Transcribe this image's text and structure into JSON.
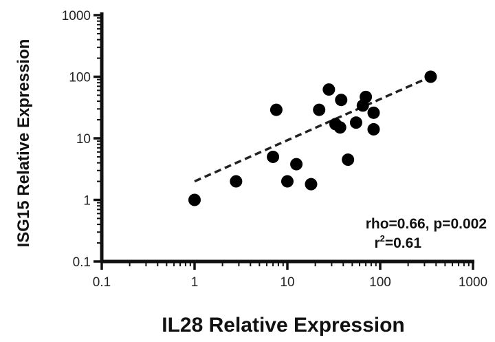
{
  "chart_data": {
    "type": "scatter",
    "title": "",
    "xlabel": "IL28 Relative Expression",
    "ylabel": "ISG15 Relative Expression",
    "xscale": "log",
    "yscale": "log",
    "xlim": [
      0.1,
      1000
    ],
    "ylim": [
      0.1,
      1000
    ],
    "x_ticks": [
      0.1,
      1,
      10,
      100,
      1000
    ],
    "x_tick_labels": [
      "0.1",
      "1",
      "10",
      "100",
      "1000"
    ],
    "y_ticks": [
      0.1,
      1,
      10,
      100,
      1000
    ],
    "y_tick_labels": [
      "0.1",
      "1",
      "10",
      "100",
      "1000"
    ],
    "grid": false,
    "points": [
      {
        "x": 1.0,
        "y": 1.0
      },
      {
        "x": 2.8,
        "y": 2.0
      },
      {
        "x": 7.0,
        "y": 5.0
      },
      {
        "x": 7.6,
        "y": 29
      },
      {
        "x": 10,
        "y": 2.0
      },
      {
        "x": 12.5,
        "y": 3.8
      },
      {
        "x": 18,
        "y": 1.8
      },
      {
        "x": 22,
        "y": 29
      },
      {
        "x": 28,
        "y": 62
      },
      {
        "x": 33,
        "y": 17
      },
      {
        "x": 37,
        "y": 15
      },
      {
        "x": 38,
        "y": 42
      },
      {
        "x": 45,
        "y": 4.5
      },
      {
        "x": 55,
        "y": 18
      },
      {
        "x": 65,
        "y": 34
      },
      {
        "x": 70,
        "y": 47
      },
      {
        "x": 85,
        "y": 26
      },
      {
        "x": 85,
        "y": 14
      },
      {
        "x": 350,
        "y": 100
      }
    ],
    "trendline": {
      "style": "dashed",
      "from": {
        "x": 1,
        "y": 2.0
      },
      "to": {
        "x": 350,
        "y": 100
      }
    },
    "annotations": {
      "line1": "rho=0.66, p=0.002",
      "r2_prefix": "r",
      "r2_sup": "2",
      "r2_suffix": "=0.61"
    }
  }
}
